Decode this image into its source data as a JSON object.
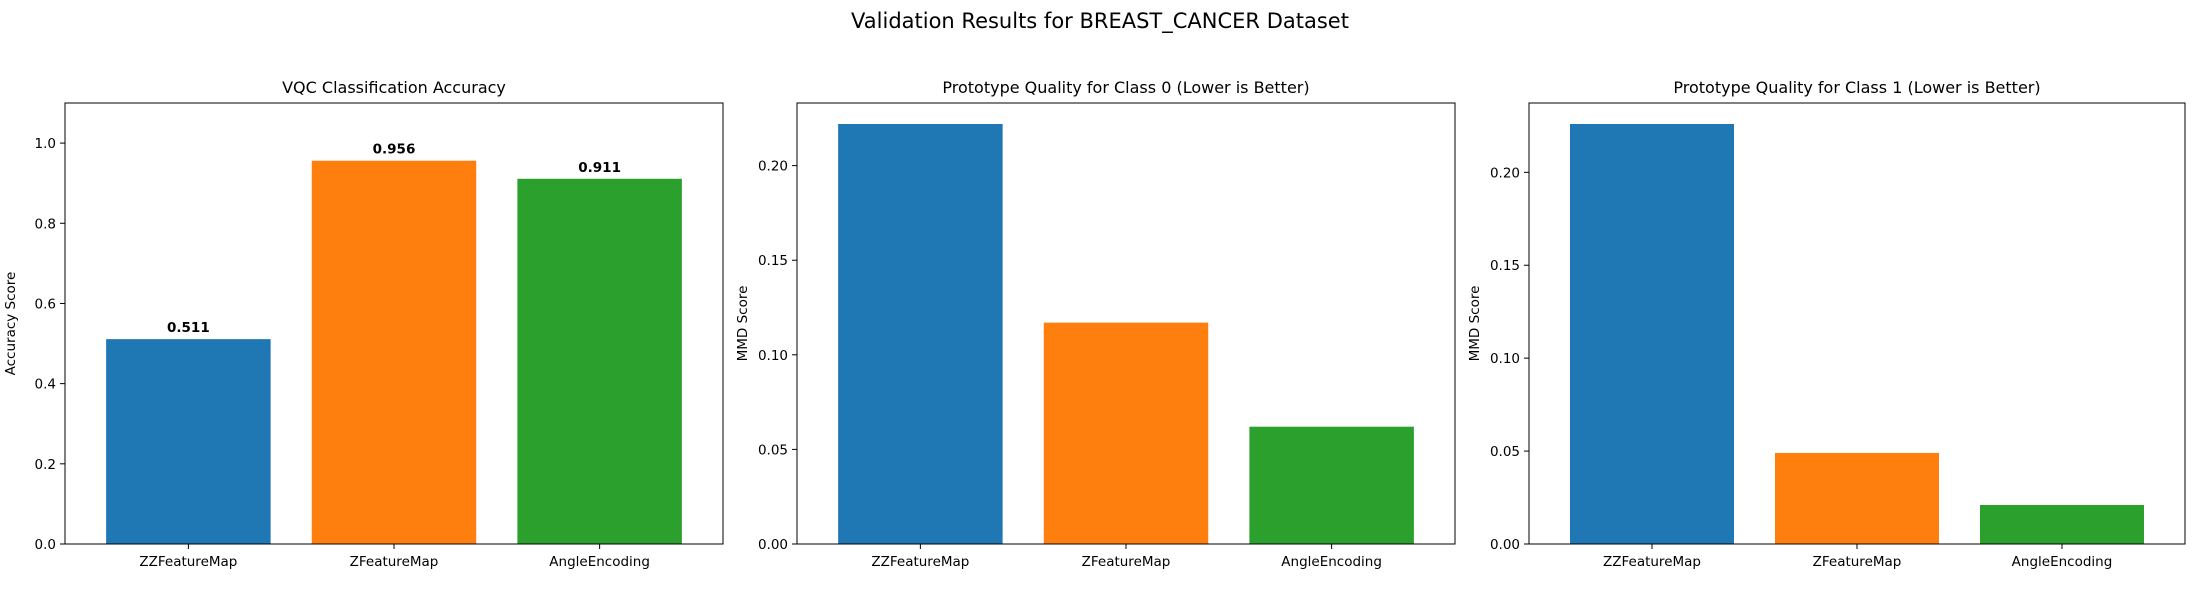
{
  "figure": {
    "title": "Validation Results for BREAST_CANCER Dataset"
  },
  "chart_data": [
    {
      "type": "bar",
      "title": "VQC Classification Accuracy",
      "xlabel": "",
      "ylabel": "Accuracy Score",
      "categories": [
        "ZZFeatureMap",
        "ZFeatureMap",
        "AngleEncoding"
      ],
      "values": [
        0.511,
        0.956,
        0.911
      ],
      "data_labels": [
        "0.511",
        "0.956",
        "0.911"
      ],
      "colors": [
        "#1f77b4",
        "#ff7f0e",
        "#2ca02c"
      ],
      "ylim": [
        0,
        1.1
      ],
      "yticks": [
        0.0,
        0.2,
        0.4,
        0.6,
        0.8,
        1.0
      ],
      "ytick_labels": [
        "0.0",
        "0.2",
        "0.4",
        "0.6",
        "0.8",
        "1.0"
      ],
      "grid": false,
      "legend": "none"
    },
    {
      "type": "bar",
      "title": "Prototype Quality for Class 0 (Lower is Better)",
      "xlabel": "",
      "ylabel": "MMD Score",
      "categories": [
        "ZZFeatureMap",
        "ZFeatureMap",
        "AngleEncoding"
      ],
      "values": [
        0.222,
        0.117,
        0.062
      ],
      "colors": [
        "#1f77b4",
        "#ff7f0e",
        "#2ca02c"
      ],
      "ylim": [
        0,
        0.2331
      ],
      "yticks": [
        0.0,
        0.05,
        0.1,
        0.15,
        0.2
      ],
      "ytick_labels": [
        "0.00",
        "0.05",
        "0.10",
        "0.15",
        "0.20"
      ],
      "grid": false,
      "legend": "none"
    },
    {
      "type": "bar",
      "title": "Prototype Quality for Class 1 (Lower is Better)",
      "xlabel": "",
      "ylabel": "MMD Score",
      "categories": [
        "ZZFeatureMap",
        "ZFeatureMap",
        "AngleEncoding"
      ],
      "values": [
        0.226,
        0.049,
        0.021
      ],
      "colors": [
        "#1f77b4",
        "#ff7f0e",
        "#2ca02c"
      ],
      "ylim": [
        0,
        0.2373
      ],
      "yticks": [
        0.0,
        0.05,
        0.1,
        0.15,
        0.2
      ],
      "ytick_labels": [
        "0.00",
        "0.05",
        "0.10",
        "0.15",
        "0.20"
      ],
      "grid": false,
      "legend": "none"
    }
  ]
}
